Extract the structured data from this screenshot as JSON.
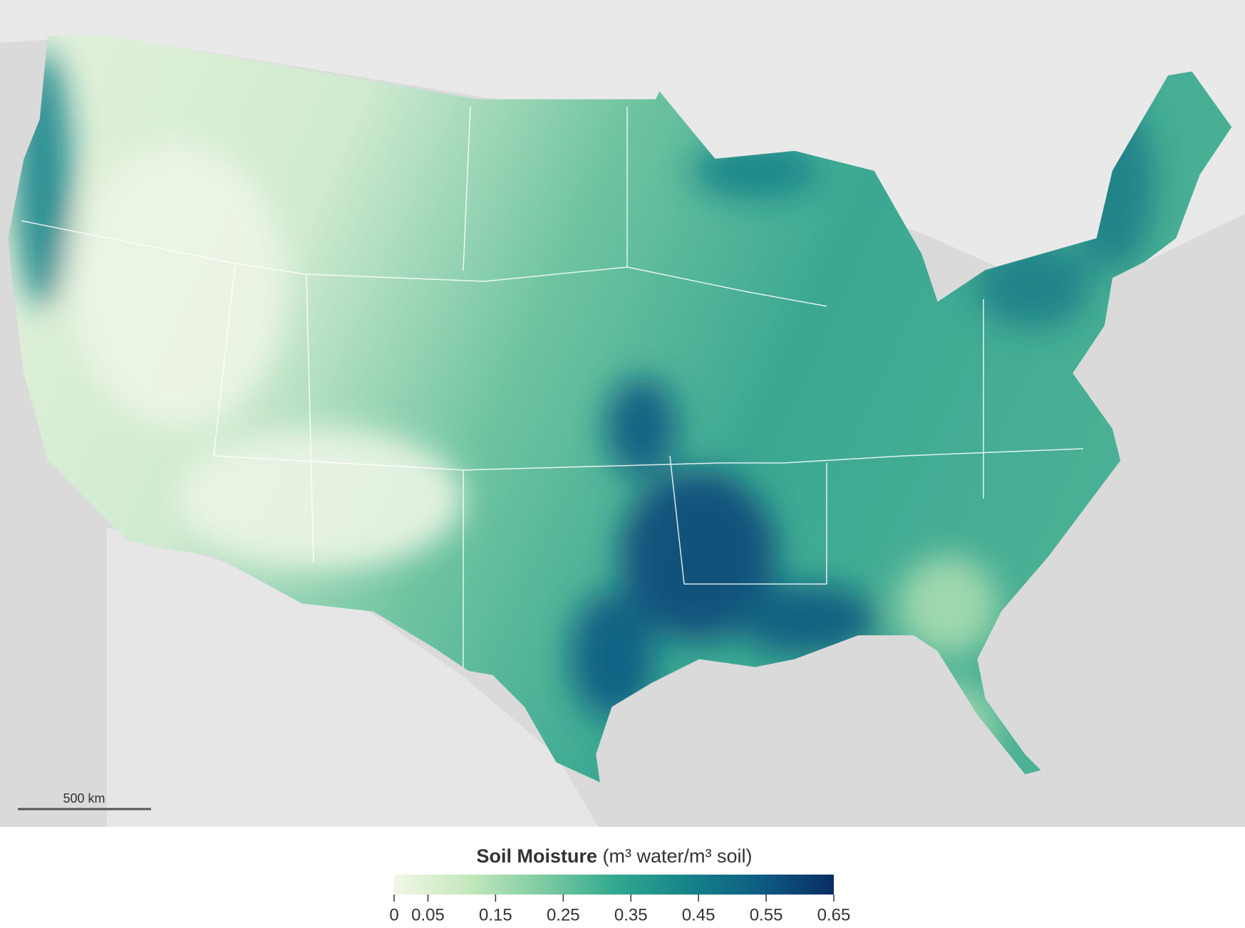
{
  "map": {
    "scale_bar": "500 km"
  },
  "legend": {
    "title": "Soil Moisture",
    "units": "(m³ water/m³ soil)",
    "range": [
      0,
      0.65
    ],
    "colors": [
      "#f1f7e6",
      "#c6e8bd",
      "#7fcca3",
      "#33a98f",
      "#16838a",
      "#0e5c83",
      "#082d62"
    ],
    "ticks": [
      0,
      0.05,
      0.15,
      0.25,
      0.35,
      0.45,
      0.55,
      0.65
    ]
  }
}
